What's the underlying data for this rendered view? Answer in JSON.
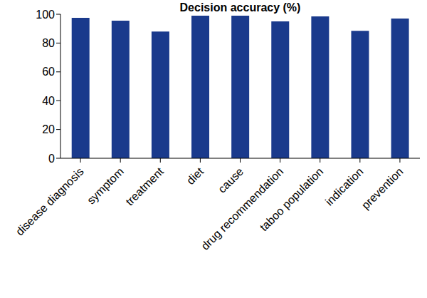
{
  "chart_data": {
    "type": "bar",
    "title": "Decision accuracy (%)",
    "categories": [
      "disease diagnosis",
      "symptom",
      "treatment",
      "diet",
      "cause",
      "drug recommendation",
      "taboo population",
      "indication",
      "prevention"
    ],
    "values": [
      97.5,
      95.5,
      88,
      99,
      99,
      95,
      98.5,
      88.5,
      97
    ],
    "color": "#1a3a8c",
    "ylim": [
      0,
      100
    ],
    "yticks": [
      0,
      20,
      40,
      60,
      80,
      100
    ],
    "grid": false
  }
}
